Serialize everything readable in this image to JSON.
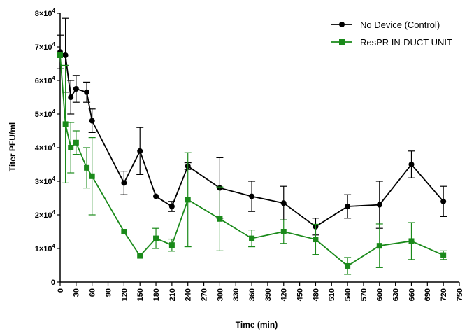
{
  "chart_data": {
    "type": "line",
    "title": "",
    "xlabel": "Time (min)",
    "ylabel": "Titer PFU/ml",
    "xlim": [
      0,
      750
    ],
    "ylim": [
      0,
      80000
    ],
    "x_ticks": [
      0,
      30,
      60,
      90,
      120,
      150,
      180,
      210,
      240,
      270,
      300,
      330,
      360,
      390,
      420,
      450,
      480,
      510,
      540,
      570,
      600,
      630,
      660,
      690,
      720,
      750
    ],
    "y_ticks": [
      {
        "value": 0,
        "mantissa": "0",
        "sup": ""
      },
      {
        "value": 10000,
        "mantissa": "1×10",
        "sup": "4"
      },
      {
        "value": 20000,
        "mantissa": "2×10",
        "sup": "4"
      },
      {
        "value": 30000,
        "mantissa": "3×10",
        "sup": "4"
      },
      {
        "value": 40000,
        "mantissa": "4×10",
        "sup": "4"
      },
      {
        "value": 50000,
        "mantissa": "5×10",
        "sup": "4"
      },
      {
        "value": 60000,
        "mantissa": "6×10",
        "sup": "4"
      },
      {
        "value": 70000,
        "mantissa": "7×10",
        "sup": "4"
      },
      {
        "value": 80000,
        "mantissa": "8×10",
        "sup": "4"
      }
    ],
    "grid": false,
    "legend_position": "top-right",
    "x": [
      0,
      10,
      20,
      30,
      50,
      60,
      120,
      150,
      180,
      210,
      240,
      300,
      360,
      420,
      480,
      540,
      600,
      660,
      720
    ],
    "series": [
      {
        "name": "No Device (Control)",
        "color": "#000000",
        "marker": "circle",
        "values": [
          68500,
          67500,
          55000,
          57500,
          56500,
          48000,
          29500,
          39000,
          25500,
          22500,
          34500,
          28000,
          25500,
          23500,
          16500,
          22500,
          23000,
          35000,
          24000
        ],
        "err": [
          5000,
          11000,
          5000,
          4000,
          3000,
          3500,
          3500,
          7000,
          0,
          1500,
          1000,
          9000,
          4500,
          5000,
          2500,
          3500,
          7000,
          4000,
          4500
        ]
      },
      {
        "name": "ResPR IN-DUCT UNIT",
        "color": "#1a8a1a",
        "marker": "square",
        "values": [
          67500,
          47000,
          40000,
          41500,
          34000,
          31500,
          15000,
          7800,
          13000,
          11000,
          24500,
          18800,
          13000,
          15000,
          12700,
          4800,
          10800,
          12200,
          8000
        ],
        "err": [
          0,
          17500,
          7500,
          3500,
          6000,
          11500,
          0,
          0,
          3000,
          1800,
          14000,
          9500,
          2500,
          3500,
          4500,
          2500,
          6500,
          5500,
          1300
        ]
      }
    ]
  }
}
